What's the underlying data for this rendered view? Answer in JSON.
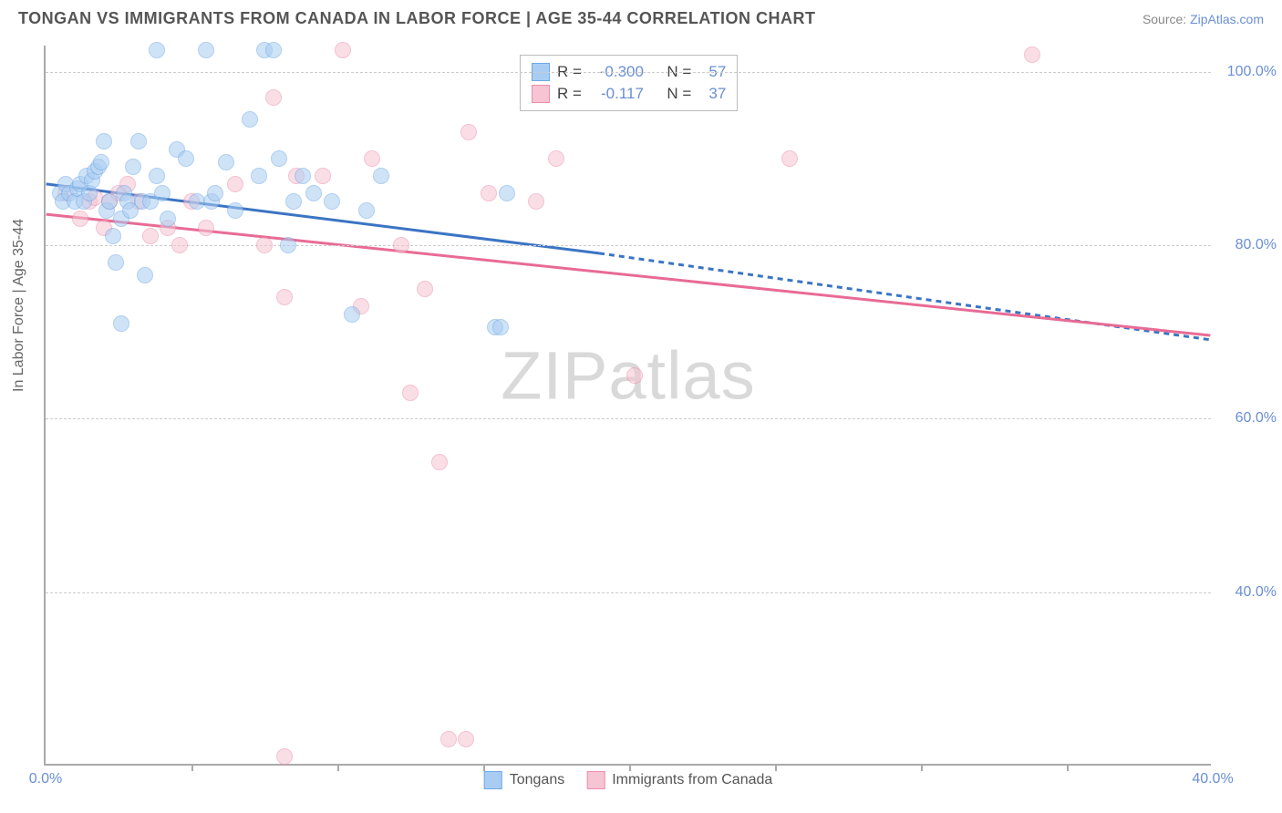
{
  "header": {
    "title": "TONGAN VS IMMIGRANTS FROM CANADA IN LABOR FORCE | AGE 35-44 CORRELATION CHART",
    "source_prefix": "Source: ",
    "source_link": "ZipAtlas.com"
  },
  "axes": {
    "y_label": "In Labor Force | Age 35-44",
    "x_min": 0,
    "x_max": 40,
    "y_min": 20,
    "y_max": 103,
    "x_ticks": [
      0,
      40
    ],
    "x_tick_labels": [
      "0.0%",
      "40.0%"
    ],
    "minor_x_ticks": [
      5,
      10,
      15,
      20,
      25,
      30,
      35
    ],
    "y_ticks": [
      40,
      60,
      80,
      100
    ],
    "y_tick_labels": [
      "40.0%",
      "60.0%",
      "80.0%",
      "100.0%"
    ],
    "grid_color": "#cccccc",
    "axis_color": "#aaaaaa",
    "tick_label_color": "#6a8fd4"
  },
  "watermark": {
    "text_z": "ZIP",
    "text_rest": "atlas"
  },
  "series": {
    "blue": {
      "label": "Tongans",
      "fill": "#a9cdf2",
      "stroke": "#6fa8e6",
      "line_color": "#3b74c4",
      "r_label": "R =",
      "r_value": "-0.300",
      "n_label": "N =",
      "n_value": "57",
      "line": {
        "x1": 0,
        "y1": 87,
        "x2": 19,
        "y2": 79,
        "dash_x2": 40,
        "dash_y2": 69
      },
      "points": [
        [
          0.5,
          86
        ],
        [
          0.6,
          85
        ],
        [
          0.7,
          87
        ],
        [
          0.8,
          86
        ],
        [
          1.0,
          85
        ],
        [
          1.1,
          86.5
        ],
        [
          1.2,
          87
        ],
        [
          1.3,
          85
        ],
        [
          1.4,
          88
        ],
        [
          1.5,
          86
        ],
        [
          1.6,
          87.5
        ],
        [
          1.7,
          88.5
        ],
        [
          1.8,
          89
        ],
        [
          1.9,
          89.5
        ],
        [
          2.0,
          92
        ],
        [
          2.1,
          84
        ],
        [
          2.2,
          85
        ],
        [
          2.3,
          81
        ],
        [
          2.4,
          78
        ],
        [
          2.6,
          71
        ],
        [
          2.6,
          83
        ],
        [
          2.7,
          86
        ],
        [
          2.8,
          85
        ],
        [
          2.9,
          84
        ],
        [
          3.0,
          89
        ],
        [
          3.2,
          92
        ],
        [
          3.3,
          85
        ],
        [
          3.4,
          76.5
        ],
        [
          3.6,
          85
        ],
        [
          3.8,
          102.5
        ],
        [
          3.8,
          88
        ],
        [
          4.0,
          86
        ],
        [
          4.2,
          83
        ],
        [
          4.5,
          91
        ],
        [
          4.8,
          90
        ],
        [
          5.2,
          85
        ],
        [
          5.5,
          102.5
        ],
        [
          5.7,
          85
        ],
        [
          5.8,
          86
        ],
        [
          6.2,
          89.5
        ],
        [
          6.5,
          84
        ],
        [
          7.0,
          94.5
        ],
        [
          7.3,
          88
        ],
        [
          7.5,
          102.5
        ],
        [
          7.8,
          102.5
        ],
        [
          8.0,
          90
        ],
        [
          8.3,
          80
        ],
        [
          8.5,
          85
        ],
        [
          8.8,
          88
        ],
        [
          9.2,
          86
        ],
        [
          9.8,
          85
        ],
        [
          10.5,
          72
        ],
        [
          11.0,
          84
        ],
        [
          11.5,
          88
        ],
        [
          15.4,
          70.5
        ],
        [
          15.6,
          70.5
        ],
        [
          15.8,
          86
        ]
      ]
    },
    "pink": {
      "label": "Immigrants from Canada",
      "fill": "#f6c4d3",
      "stroke": "#ec8fac",
      "line_color": "#e86b94",
      "r_label": "R =",
      "r_value": "-0.117",
      "n_label": "N =",
      "n_value": "37",
      "line": {
        "x1": 0,
        "y1": 83.5,
        "x2": 40,
        "y2": 69.5
      },
      "points": [
        [
          0.7,
          86
        ],
        [
          1.2,
          83
        ],
        [
          1.5,
          85
        ],
        [
          1.7,
          85.5
        ],
        [
          2.0,
          82
        ],
        [
          2.2,
          85
        ],
        [
          2.5,
          86
        ],
        [
          2.8,
          87
        ],
        [
          3.2,
          85
        ],
        [
          3.6,
          81
        ],
        [
          4.2,
          82
        ],
        [
          4.6,
          80
        ],
        [
          5.0,
          85
        ],
        [
          5.5,
          82
        ],
        [
          6.5,
          87
        ],
        [
          7.5,
          80
        ],
        [
          7.8,
          97
        ],
        [
          8.2,
          74
        ],
        [
          8.2,
          21
        ],
        [
          8.6,
          88
        ],
        [
          9.5,
          88
        ],
        [
          10.2,
          102.5
        ],
        [
          10.8,
          73
        ],
        [
          11.2,
          90
        ],
        [
          12.2,
          80
        ],
        [
          12.5,
          63
        ],
        [
          13.0,
          75
        ],
        [
          13.5,
          55
        ],
        [
          13.8,
          23
        ],
        [
          14.4,
          23
        ],
        [
          14.5,
          93
        ],
        [
          15.2,
          86
        ],
        [
          16.8,
          85
        ],
        [
          17.5,
          90
        ],
        [
          20.2,
          65
        ],
        [
          25.5,
          90
        ],
        [
          33.8,
          102
        ]
      ]
    }
  },
  "chart_style": {
    "point_radius": 9,
    "background": "#ffffff"
  }
}
